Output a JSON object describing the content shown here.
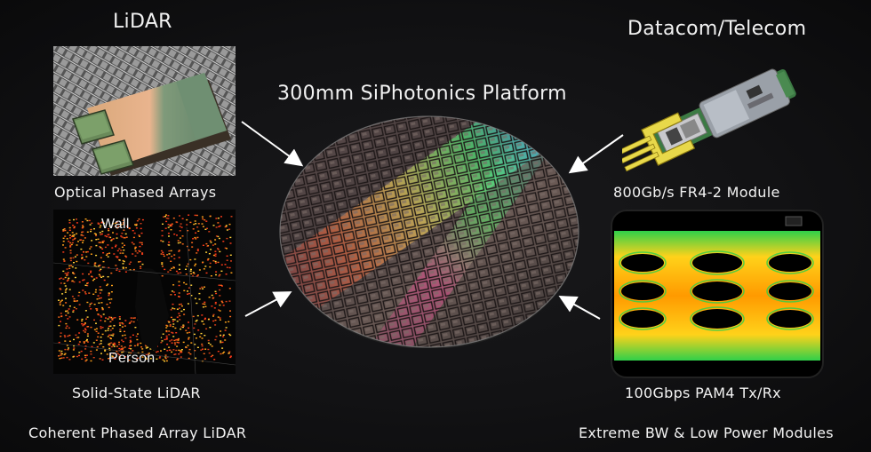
{
  "left_heading": "LiDAR",
  "right_heading": "Datacom/Telecom",
  "center_title": "300mm SiPhotonics Platform",
  "top_left_caption": "Optical Phased Arrays",
  "bottom_left_caption": "Solid-State LiDAR",
  "top_right_caption": "800Gb/s FR4-2 Module",
  "bottom_right_caption": "100Gbps PAM4 Tx/Rx",
  "left_footer": "Coherent Phased Array LiDAR",
  "right_footer": "Extreme BW & Low Power Modules",
  "lidar_labels": {
    "wall": "Wall",
    "person": "Person"
  },
  "colors": {
    "background": "#121214",
    "text": "#f2f2f2",
    "eye_diagram": "#ff9a00",
    "arrow": "#ffffff"
  }
}
